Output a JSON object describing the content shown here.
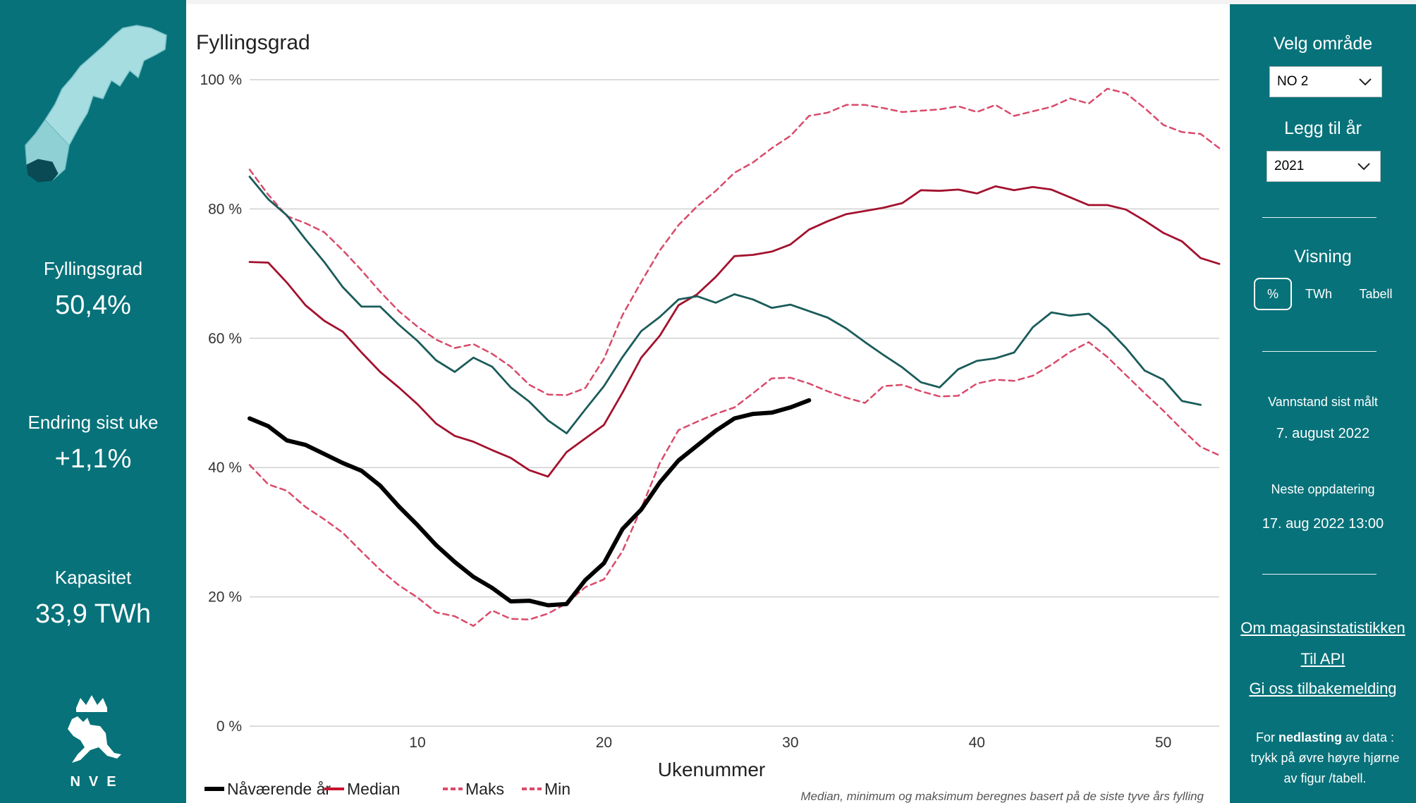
{
  "left_panel": {
    "kpis": [
      {
        "label": "Fyllingsgrad",
        "value": "50,4%"
      },
      {
        "label": "Endring sist uke",
        "value": "+1,1%"
      },
      {
        "label": "Kapasitet",
        "value": "33,9 TWh"
      }
    ],
    "logo_text": "NVE",
    "colors": {
      "panel": "#07727a",
      "region_light": "#a6dde1",
      "region_selected": "#0a4a55"
    }
  },
  "right_panel": {
    "area_heading": "Velg område",
    "area_selected": "NO 2",
    "year_heading": "Legg til år",
    "year_selected": "2021",
    "view_heading": "Visning",
    "view_options": [
      "%",
      "TWh",
      "Tabell"
    ],
    "view_active": "%",
    "last_measured_label": "Vannstand sist målt",
    "last_measured_value": "7. august 2022",
    "next_update_label": "Neste oppdatering",
    "next_update_value": "17. aug 2022 13:00",
    "links": [
      "Om magasinstatistikken",
      "Til API",
      "Gi oss tilbakemelding"
    ],
    "download_note": {
      "prefix": "For ",
      "bold": "nedlasting",
      "suffix": " av data : trykk på øvre høyre hjørne av figur /tabell."
    }
  },
  "chart_data": {
    "type": "line",
    "title": "Fyllingsgrad",
    "xlabel": "Ukenummer",
    "ylabel": "",
    "xlim": [
      1,
      53
    ],
    "ylim": [
      0,
      100
    ],
    "x_ticks": [
      10,
      20,
      30,
      40,
      50
    ],
    "y_ticks": [
      0,
      20,
      40,
      60,
      80,
      100
    ],
    "y_tick_labels": [
      "0 %",
      "20 %",
      "40 %",
      "60 %",
      "80 %",
      "100 %"
    ],
    "grid": true,
    "legend_position": "bottom-left",
    "footnote": "Median, minimum og maksimum beregnes basert på de siste tyve års fylling",
    "series": [
      {
        "name": "Nåværende år",
        "style": "solid-thick",
        "color": "#000000",
        "x": [
          1,
          2,
          3,
          4,
          5,
          6,
          7,
          8,
          9,
          10,
          11,
          12,
          13,
          14,
          15,
          16,
          17,
          18,
          19,
          20,
          21,
          22,
          23,
          24,
          25,
          26,
          27,
          28,
          29,
          30,
          31
        ],
        "values": [
          47.6,
          46.4,
          44.2,
          43.5,
          42.1,
          40.7,
          39.5,
          37.2,
          34.0,
          31.1,
          28.0,
          25.4,
          23.1,
          21.4,
          19.3,
          19.4,
          18.7,
          18.9,
          22.6,
          25.2,
          30.5,
          33.5,
          37.7,
          41.1,
          43.4,
          45.7,
          47.6,
          48.3,
          48.5,
          49.3,
          50.4
        ]
      },
      {
        "name": "Median",
        "style": "solid",
        "color": "#a3122e",
        "x": [
          1,
          2,
          3,
          4,
          5,
          6,
          7,
          8,
          9,
          10,
          11,
          12,
          13,
          14,
          15,
          16,
          17,
          18,
          19,
          20,
          21,
          22,
          23,
          24,
          25,
          26,
          27,
          28,
          29,
          30,
          31,
          32,
          33,
          34,
          35,
          36,
          37,
          38,
          39,
          40,
          41,
          42,
          43,
          44,
          45,
          46,
          47,
          48,
          49,
          50,
          51,
          52,
          53
        ],
        "values": [
          71.8,
          71.7,
          68.6,
          65.1,
          62.7,
          61.0,
          57.8,
          54.8,
          52.4,
          49.8,
          46.8,
          44.9,
          44.0,
          42.7,
          41.5,
          39.6,
          38.6,
          42.4,
          44.5,
          46.6,
          51.6,
          57.0,
          60.4,
          65.1,
          66.8,
          69.5,
          72.7,
          72.9,
          73.4,
          74.5,
          76.8,
          78.1,
          79.2,
          79.7,
          80.2,
          80.9,
          82.9,
          82.8,
          83.0,
          82.4,
          83.5,
          82.9,
          83.4,
          83.0,
          81.8,
          80.6,
          80.6,
          79.9,
          78.2,
          76.3,
          75.0,
          72.4,
          71.5
        ]
      },
      {
        "name": "2021",
        "style": "solid",
        "color": "#1a5c5a",
        "x": [
          1,
          2,
          3,
          4,
          5,
          6,
          7,
          8,
          9,
          10,
          11,
          12,
          13,
          14,
          15,
          16,
          17,
          18,
          19,
          20,
          21,
          22,
          23,
          24,
          25,
          26,
          27,
          28,
          29,
          30,
          31,
          32,
          33,
          34,
          35,
          36,
          37,
          38,
          39,
          40,
          41,
          42,
          43,
          44,
          45,
          46,
          47,
          48,
          49,
          50,
          51,
          52
        ],
        "values": [
          85.0,
          81.5,
          79.0,
          75.3,
          71.8,
          67.9,
          64.9,
          64.9,
          62.1,
          59.6,
          56.6,
          54.8,
          57.0,
          55.6,
          52.4,
          50.2,
          47.3,
          45.3,
          49.0,
          52.6,
          57.1,
          61.1,
          63.3,
          66.0,
          66.5,
          65.5,
          66.8,
          66.0,
          64.7,
          65.2,
          64.2,
          63.2,
          61.5,
          59.4,
          57.4,
          55.5,
          53.2,
          52.4,
          55.2,
          56.5,
          56.9,
          57.8,
          61.7,
          64.0,
          63.5,
          63.8,
          61.5,
          58.5,
          55.0,
          53.6,
          50.3,
          49.7
        ]
      },
      {
        "name": "Maks",
        "style": "dashed",
        "color": "#d94a6a",
        "x": [
          1,
          2,
          3,
          4,
          5,
          6,
          7,
          8,
          9,
          10,
          11,
          12,
          13,
          14,
          15,
          16,
          17,
          18,
          19,
          20,
          21,
          22,
          23,
          24,
          25,
          26,
          27,
          28,
          29,
          30,
          31,
          32,
          33,
          34,
          35,
          36,
          37,
          38,
          39,
          40,
          41,
          42,
          43,
          44,
          45,
          46,
          47,
          48,
          49,
          50,
          51,
          52,
          53
        ],
        "values": [
          86.1,
          82.2,
          78.9,
          77.8,
          76.4,
          73.6,
          70.5,
          67.2,
          64.2,
          61.8,
          59.8,
          58.5,
          59.1,
          57.6,
          55.6,
          52.8,
          51.3,
          51.2,
          52.3,
          56.8,
          63.6,
          68.7,
          73.6,
          77.5,
          80.4,
          82.8,
          85.6,
          87.2,
          89.4,
          91.3,
          94.4,
          94.9,
          96.1,
          96.1,
          95.6,
          95.0,
          95.2,
          95.4,
          95.9,
          95.0,
          96.1,
          94.4,
          95.1,
          95.8,
          97.1,
          96.3,
          98.6,
          97.9,
          95.6,
          93.0,
          91.9,
          91.6,
          89.4
        ]
      },
      {
        "name": "Min",
        "style": "dashed",
        "color": "#d94a6a",
        "x": [
          1,
          2,
          3,
          4,
          5,
          6,
          7,
          8,
          9,
          10,
          11,
          12,
          13,
          14,
          15,
          16,
          17,
          18,
          19,
          20,
          21,
          22,
          23,
          24,
          25,
          26,
          27,
          28,
          29,
          30,
          31,
          32,
          33,
          34,
          35,
          36,
          37,
          38,
          39,
          40,
          41,
          42,
          43,
          44,
          45,
          46,
          47,
          48,
          49,
          50,
          51,
          52,
          53
        ],
        "values": [
          40.4,
          37.4,
          36.4,
          33.9,
          32.0,
          29.9,
          27.0,
          24.2,
          21.8,
          19.9,
          17.6,
          17.0,
          15.5,
          17.9,
          16.6,
          16.5,
          17.4,
          19.0,
          21.5,
          22.7,
          27.1,
          33.7,
          40.7,
          45.8,
          47.1,
          48.3,
          49.3,
          51.5,
          53.8,
          53.9,
          53.0,
          51.8,
          50.8,
          50.0,
          52.6,
          52.8,
          51.8,
          51.0,
          51.1,
          53.0,
          53.6,
          53.4,
          54.2,
          55.9,
          57.9,
          59.4,
          57.1,
          54.3,
          51.5,
          48.8,
          45.9,
          43.2,
          41.9
        ]
      }
    ],
    "legend": [
      {
        "label": "Nåværende år",
        "color": "#000000",
        "style": "solid-thick"
      },
      {
        "label": "Median",
        "color": "#c8102e",
        "style": "solid"
      },
      {
        "label": "Maks",
        "color": "#d94a6a",
        "style": "dashed"
      },
      {
        "label": "Min",
        "color": "#d94a6a",
        "style": "dashed"
      }
    ]
  }
}
